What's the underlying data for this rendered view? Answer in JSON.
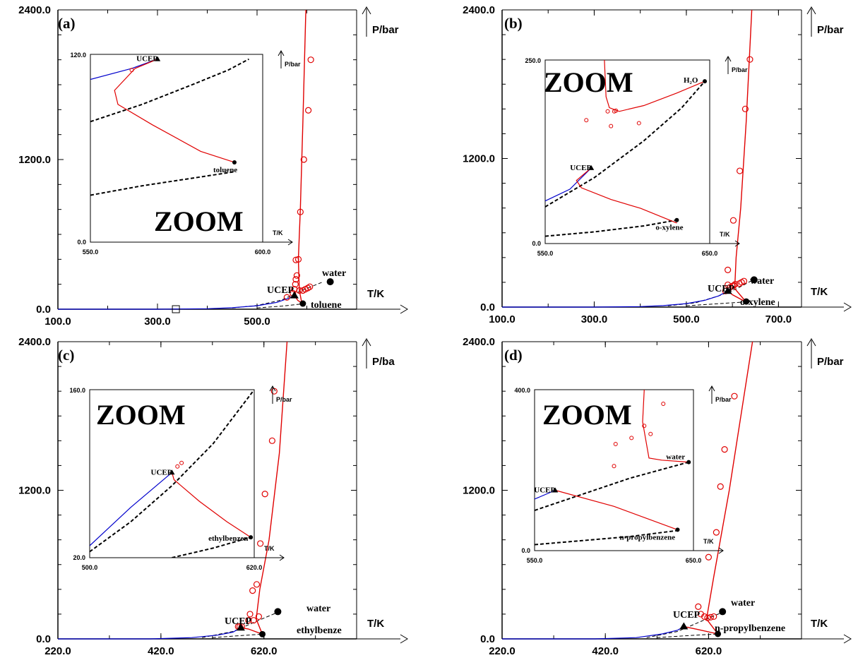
{
  "chart_data": [
    {
      "panel": "(a)",
      "type": "line",
      "x_label": "T/K",
      "y_label": "P/bar",
      "xlim": [
        100,
        700
      ],
      "ylim": [
        0,
        2400
      ],
      "xticks": [
        "100.0",
        "300.0",
        "500.0"
      ],
      "yticks": [
        "0.0",
        "1200.0",
        "2400.0"
      ],
      "x_tick_values": [
        100,
        300,
        500
      ],
      "y_tick_values": [
        0,
        1200,
        2400
      ],
      "labels": {
        "water": "water",
        "other": "toluene",
        "ucep": "UCEP"
      },
      "zoom": {
        "label": "ZOOM",
        "x_label": "T/K",
        "y_label": "P/bar",
        "xlim": [
          550,
          600
        ],
        "ylim": [
          0,
          120
        ],
        "xticks": [
          "550.0",
          "600.0"
        ],
        "yticks": [
          "0.0",
          "120.0"
        ],
        "labels": {
          "ucep": "UCEP",
          "other": "toluene"
        },
        "blue": [
          [
            550,
            104
          ],
          [
            562,
            111
          ],
          [
            569.5,
            117
          ]
        ],
        "black1": [
          [
            550,
            77
          ],
          [
            565,
            88
          ],
          [
            580,
            101
          ],
          [
            590,
            110
          ],
          [
            596,
            117
          ]
        ],
        "black2": [
          [
            550,
            30
          ],
          [
            565,
            36
          ],
          [
            580,
            41
          ],
          [
            591.8,
            45
          ]
        ],
        "red": [
          [
            569.5,
            117
          ],
          [
            563,
            111
          ],
          [
            557,
            97
          ],
          [
            558,
            88
          ],
          [
            568,
            75
          ],
          [
            582,
            58
          ],
          [
            591.8,
            51
          ]
        ],
        "points": [
          [
            562,
            110
          ]
        ],
        "ucep": [
          569.5,
          117
        ],
        "crit_other": [
          591.8,
          51
        ]
      },
      "blue": [
        [
          100,
          0
        ],
        [
          300,
          0
        ],
        [
          400,
          4
        ],
        [
          450,
          12
        ],
        [
          500,
          28
        ],
        [
          540,
          55
        ],
        [
          565,
          90
        ],
        [
          575,
          110
        ]
      ],
      "black1": [
        [
          450,
          10
        ],
        [
          500,
          30
        ],
        [
          550,
          75
        ],
        [
          590,
          150
        ],
        [
          630,
          215
        ]
      ],
      "black2": [
        [
          500,
          10
        ],
        [
          550,
          25
        ],
        [
          590,
          42
        ]
      ],
      "red": [
        [
          575,
          110
        ],
        [
          582,
          70
        ],
        [
          590,
          50
        ],
        [
          585,
          150
        ],
        [
          583,
          400
        ],
        [
          587,
          800
        ],
        [
          592,
          1500
        ],
        [
          598,
          2400
        ]
      ],
      "points": [
        [
          560,
          95
        ],
        [
          572,
          128
        ],
        [
          575,
          160
        ],
        [
          577,
          200
        ],
        [
          578,
          240
        ],
        [
          580,
          270
        ],
        [
          583,
          400
        ],
        [
          585,
          150
        ],
        [
          592,
          150
        ],
        [
          597,
          160
        ],
        [
          602,
          170
        ],
        [
          606,
          180
        ],
        [
          578,
          395
        ],
        [
          587,
          780
        ],
        [
          594,
          1200
        ],
        [
          603,
          1595
        ],
        [
          608,
          2000
        ]
      ],
      "water_crit": [
        647,
        220
      ],
      "other_crit": [
        592,
        45
      ],
      "ucep": [
        575,
        110
      ],
      "small_square": [
        337,
        0
      ]
    },
    {
      "panel": "(b)",
      "type": "line",
      "x_label": "T/K",
      "y_label": "P/bar",
      "xlim": [
        100,
        750
      ],
      "ylim": [
        0,
        2400
      ],
      "xticks": [
        "100.0",
        "300.0",
        "500.0",
        "700.0"
      ],
      "yticks": [
        "0.0",
        "1200.0",
        "2400.0"
      ],
      "x_tick_values": [
        100,
        300,
        500,
        700
      ],
      "y_tick_values": [
        0,
        1200,
        2400
      ],
      "labels": {
        "water": "water",
        "other": "o-xylene",
        "ucep": "UCEP"
      },
      "zoom": {
        "label": "ZOOM",
        "x_label": "T/K",
        "y_label": "P/bar",
        "xlim": [
          550,
          650
        ],
        "ylim": [
          0,
          250
        ],
        "xticks": [
          "550.0",
          "650.0"
        ],
        "yticks": [
          "0.0",
          "250.0"
        ],
        "labels": {
          "ucep": "UCEP",
          "other": "o-xylene",
          "h2o": "H₂O"
        },
        "blue": [
          [
            550,
            58
          ],
          [
            565,
            74
          ],
          [
            578,
            103
          ]
        ],
        "black1": [
          [
            550,
            50
          ],
          [
            580,
            90
          ],
          [
            610,
            140
          ],
          [
            633,
            185
          ],
          [
            647,
            221
          ]
        ],
        "black2": [
          [
            550,
            10
          ],
          [
            580,
            16
          ],
          [
            610,
            24
          ],
          [
            630,
            32
          ]
        ],
        "red": [
          [
            578,
            103
          ],
          [
            569,
            86
          ],
          [
            572,
            76
          ],
          [
            590,
            60
          ],
          [
            608,
            48
          ],
          [
            630,
            28
          ]
        ],
        "red2": [
          [
            586,
            250
          ],
          [
            587,
            200
          ],
          [
            589,
            185
          ],
          [
            595,
            180
          ],
          [
            610,
            188
          ],
          [
            630,
            205
          ],
          [
            647,
            221
          ]
        ],
        "points": [
          [
            575,
            168
          ],
          [
            590,
            160
          ],
          [
            592,
            180
          ],
          [
            593,
            181
          ],
          [
            607,
            164
          ],
          [
            588,
            180
          ]
        ],
        "ucep": [
          578,
          103
        ],
        "h2o": [
          647,
          221
        ],
        "crit_other": [
          630,
          32
        ]
      },
      "blue": [
        [
          100,
          0
        ],
        [
          300,
          0
        ],
        [
          400,
          4
        ],
        [
          450,
          12
        ],
        [
          500,
          28
        ],
        [
          540,
          55
        ],
        [
          570,
          90
        ],
        [
          590,
          130
        ]
      ],
      "black1": [
        [
          460,
          10
        ],
        [
          520,
          35
        ],
        [
          570,
          90
        ],
        [
          610,
          150
        ],
        [
          650,
          230
        ]
      ],
      "black2": [
        [
          500,
          10
        ],
        [
          560,
          25
        ],
        [
          630,
          42
        ]
      ],
      "red": [
        [
          590,
          130
        ],
        [
          600,
          100
        ],
        [
          630,
          40
        ],
        [
          605,
          150
        ],
        [
          608,
          400
        ],
        [
          618,
          800
        ],
        [
          630,
          1500
        ],
        [
          642,
          2400
        ]
      ],
      "points": [
        [
          585,
          130
        ],
        [
          590,
          180
        ],
        [
          595,
          160
        ],
        [
          600,
          170
        ],
        [
          603,
          175
        ],
        [
          606,
          185
        ],
        [
          615,
          190
        ],
        [
          620,
          200
        ],
        [
          625,
          210
        ],
        [
          590,
          300
        ],
        [
          602,
          700
        ],
        [
          616,
          1100
        ],
        [
          628,
          1600
        ],
        [
          638,
          2000
        ]
      ],
      "water_crit": [
        647,
        220
      ],
      "other_crit": [
        630,
        45
      ],
      "ucep": [
        590,
        130
      ]
    },
    {
      "panel": "(c)",
      "type": "line",
      "x_label": "T/K",
      "y_label": "P/ba",
      "xlim": [
        220,
        800
      ],
      "ylim": [
        0,
        2400
      ],
      "xticks": [
        "220.0",
        "420.0",
        "620.0"
      ],
      "yticks": [
        "0.0",
        "1200.0",
        "2400.0"
      ],
      "x_tick_values": [
        220,
        420,
        620
      ],
      "y_tick_values": [
        0,
        1200,
        2400
      ],
      "labels": {
        "water": "water",
        "other": "ethylbenze",
        "ucep": "UCEP"
      },
      "zoom": {
        "label": "ZOOM",
        "x_label": "T/K",
        "y_label": "P/bar",
        "xlim": [
          500,
          620
        ],
        "ylim": [
          20,
          160
        ],
        "xticks": [
          "500.0",
          "620.0"
        ],
        "yticks": [
          "20.0",
          "160.0"
        ],
        "labels": {
          "ucep": "UCEP",
          "other": "ethylbenzen"
        },
        "blue": [
          [
            500,
            30
          ],
          [
            530,
            62
          ],
          [
            560,
            91
          ]
        ],
        "black1": [
          [
            500,
            25
          ],
          [
            530,
            50
          ],
          [
            560,
            80
          ],
          [
            590,
            115
          ],
          [
            620,
            160
          ]
        ],
        "black2": [
          [
            560,
            20
          ],
          [
            590,
            28
          ],
          [
            617.5,
            37
          ]
        ],
        "red": [
          [
            560,
            91
          ],
          [
            561.5,
            85
          ],
          [
            580,
            67
          ],
          [
            600,
            50
          ],
          [
            617.5,
            37
          ]
        ],
        "points": [
          [
            564,
            96
          ],
          [
            567,
            99
          ]
        ],
        "ucep": [
          560,
          91
        ],
        "crit_other": [
          617.5,
          37
        ]
      },
      "blue": [
        [
          220,
          0
        ],
        [
          400,
          0
        ],
        [
          480,
          10
        ],
        [
          530,
          30
        ],
        [
          560,
          55
        ],
        [
          575,
          90
        ]
      ],
      "black1": [
        [
          500,
          10
        ],
        [
          560,
          60
        ],
        [
          610,
          150
        ],
        [
          650,
          220
        ]
      ],
      "black2": [
        [
          520,
          10
        ],
        [
          570,
          25
        ],
        [
          617,
          38
        ]
      ],
      "red": [
        [
          575,
          90
        ],
        [
          590,
          80
        ],
        [
          617,
          38
        ],
        [
          605,
          160
        ],
        [
          612,
          400
        ],
        [
          630,
          800
        ],
        [
          650,
          1500
        ],
        [
          665,
          2400
        ]
      ],
      "points": [
        [
          570,
          100
        ],
        [
          573,
          100
        ],
        [
          577,
          100
        ],
        [
          590,
          150
        ],
        [
          593,
          200
        ],
        [
          598,
          390
        ],
        [
          606,
          440
        ],
        [
          613,
          770
        ],
        [
          622,
          1170
        ],
        [
          636,
          1600
        ],
        [
          640,
          2000
        ],
        [
          600,
          150
        ],
        [
          610,
          180
        ]
      ],
      "water_crit": [
        647,
        220
      ],
      "other_crit": [
        617,
        38
      ],
      "ucep": [
        575,
        90
      ]
    },
    {
      "panel": "(d)",
      "type": "line",
      "x_label": "T/K",
      "y_label": "P/bar",
      "xlim": [
        220,
        800
      ],
      "ylim": [
        0,
        2400
      ],
      "xticks": [
        "220.0",
        "420.0",
        "620.0"
      ],
      "yticks": [
        "0.0",
        "1200.0",
        "2400.0"
      ],
      "x_tick_values": [
        220,
        420,
        620
      ],
      "y_tick_values": [
        0,
        1200,
        2400
      ],
      "labels": {
        "water": "water",
        "other": "n-propylbenzene",
        "ucep": "UCEP"
      },
      "zoom": {
        "label": "ZOOM",
        "x_label": "T/K",
        "y_label": "P/bar",
        "xlim": [
          550,
          650
        ],
        "ylim": [
          0,
          400
        ],
        "xticks": [
          "550.0",
          "650.0"
        ],
        "yticks": [
          "0.0",
          "400.0"
        ],
        "labels": {
          "ucep": "UCEP",
          "other": "n-propylbenzene",
          "water": "water"
        },
        "blue": [
          [
            550,
            128
          ],
          [
            563,
            150
          ]
        ],
        "black1": [
          [
            550,
            100
          ],
          [
            580,
            140
          ],
          [
            610,
            180
          ],
          [
            647,
            220
          ]
        ],
        "black2": [
          [
            550,
            15
          ],
          [
            580,
            25
          ],
          [
            610,
            35
          ],
          [
            640,
            50
          ]
        ],
        "red": [
          [
            563,
            150
          ],
          [
            600,
            110
          ],
          [
            640,
            52
          ]
        ],
        "red2": [
          [
            619,
            400
          ],
          [
            618,
            320
          ],
          [
            622,
            230
          ],
          [
            630,
            225
          ],
          [
            647,
            220
          ]
        ],
        "points": [
          [
            600,
            210
          ],
          [
            601,
            265
          ],
          [
            611,
            280
          ],
          [
            619,
            310
          ],
          [
            631,
            365
          ],
          [
            623,
            290
          ]
        ],
        "ucep": [
          563,
          150
        ],
        "water": [
          647,
          220
        ],
        "crit_other": [
          640,
          52
        ]
      },
      "blue": [
        [
          220,
          0
        ],
        [
          400,
          0
        ],
        [
          480,
          10
        ],
        [
          530,
          40
        ],
        [
          560,
          70
        ],
        [
          572,
          100
        ]
      ],
      "black1": [
        [
          500,
          10
        ],
        [
          560,
          60
        ],
        [
          610,
          150
        ],
        [
          650,
          220
        ]
      ],
      "black2": [
        [
          520,
          10
        ],
        [
          575,
          25
        ],
        [
          638,
          40
        ]
      ],
      "red": [
        [
          572,
          100
        ],
        [
          600,
          75
        ],
        [
          638,
          40
        ],
        [
          616,
          160
        ],
        [
          630,
          500
        ],
        [
          660,
          1200
        ],
        [
          690,
          2000
        ],
        [
          705,
          2400
        ]
      ],
      "points": [
        [
          605,
          200
        ],
        [
          612,
          180
        ],
        [
          618,
          170
        ],
        [
          624,
          175
        ],
        [
          630,
          180
        ],
        [
          600,
          260
        ],
        [
          620,
          660
        ],
        [
          635,
          860
        ],
        [
          643,
          1230
        ],
        [
          651,
          1530
        ],
        [
          670,
          1960
        ]
      ],
      "water_crit": [
        647,
        220
      ],
      "other_crit": [
        638,
        40
      ],
      "ucep": [
        572,
        100
      ]
    }
  ]
}
